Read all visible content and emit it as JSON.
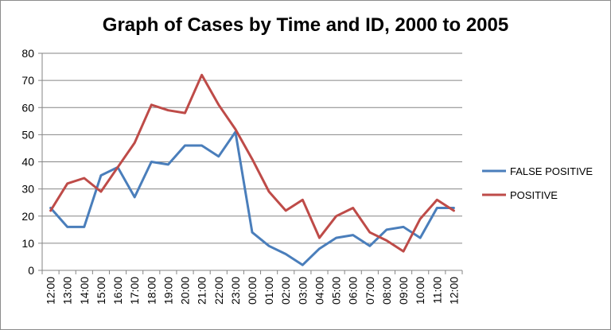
{
  "chart_data": {
    "type": "line",
    "title": "Graph of Cases by Time and ID, 2000 to 2005",
    "xlabel": "",
    "ylabel": "",
    "ylim": [
      0,
      80
    ],
    "yticks": [
      0,
      10,
      20,
      30,
      40,
      50,
      60,
      70,
      80
    ],
    "grid": "horizontal",
    "legend_position": "right",
    "categories": [
      "12:00",
      "13:00",
      "14:00",
      "15:00",
      "16:00",
      "17:00",
      "18:00",
      "19:00",
      "20:00",
      "21:00",
      "22:00",
      "23:00",
      "00:00",
      "01:00",
      "02:00",
      "03:00",
      "04:00",
      "05:00",
      "06:00",
      "07:00",
      "08:00",
      "09:00",
      "10:00",
      "11:00",
      "12:00"
    ],
    "series": [
      {
        "name": "FALSE POSITIVE",
        "color": "#4a7ebb",
        "values": [
          23,
          16,
          16,
          35,
          38,
          27,
          40,
          39,
          46,
          46,
          42,
          51,
          14,
          9,
          6,
          2,
          8,
          12,
          13,
          9,
          15,
          16,
          12,
          23,
          23
        ]
      },
      {
        "name": "POSITIVE",
        "color": "#be4b48",
        "values": [
          22,
          32,
          34,
          29,
          38,
          47,
          61,
          59,
          58,
          72,
          61,
          52,
          41,
          29,
          22,
          26,
          12,
          20,
          23,
          14,
          11,
          7,
          19,
          26,
          22
        ]
      }
    ]
  },
  "colors": {
    "gridline": "#868686",
    "axis": "#868686"
  }
}
